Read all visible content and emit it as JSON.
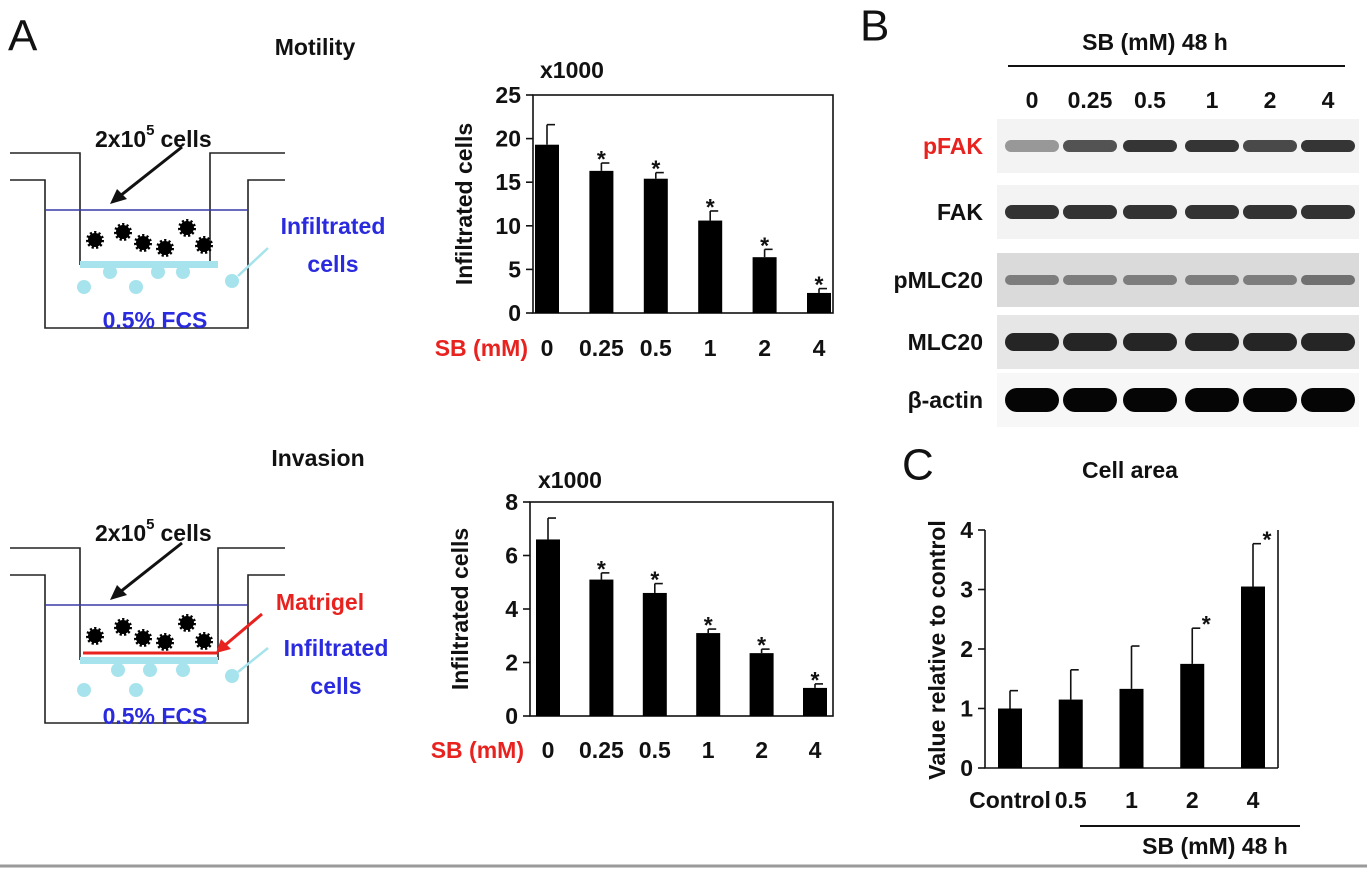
{
  "panels": {
    "a": "A",
    "b": "B",
    "c": "C"
  },
  "diagrams": [
    {
      "cells": "2x10",
      "exponent": "5",
      "cells_suffix": "cells",
      "infiltrated": [
        "Infiltrated",
        "cells"
      ],
      "medium": "0.5% FCS"
    },
    {
      "cells": "2x10",
      "exponent": "5",
      "cells_suffix": "cells",
      "infiltrated": [
        "Infiltrated",
        "cells"
      ],
      "medium": "0.5% FCS",
      "matrigel": "Matrigel"
    }
  ],
  "blot": {
    "title": "SB (mM) 48 h",
    "lanes": [
      "0",
      "0.25",
      "0.5",
      "1",
      "2",
      "4"
    ],
    "rows": [
      {
        "label": "pFAK",
        "color": "#e8221f"
      },
      {
        "label": "FAK",
        "color": "#111111"
      },
      {
        "label": "pMLC20",
        "color": "#111111"
      },
      {
        "label": "MLC20",
        "color": "#111111"
      },
      {
        "label": "β-actin",
        "color": "#111111"
      }
    ]
  },
  "chart_data": [
    {
      "type": "bar",
      "title": "Motility",
      "y_label": "Infiltrated cells",
      "y_multiplier": "x1000",
      "x_label": "SB (mM)",
      "x_label_color": "#e8221f",
      "categories": [
        "0",
        "0.25",
        "0.5",
        "1",
        "2",
        "4"
      ],
      "values": [
        19.3,
        16.3,
        15.4,
        10.6,
        6.4,
        2.3
      ],
      "errors": [
        2.3,
        0.9,
        0.7,
        1.1,
        0.9,
        0.5
      ],
      "significance": [
        null,
        "*",
        "*",
        "*",
        "*",
        "*"
      ],
      "color": "#000000",
      "ylim": [
        0,
        25
      ],
      "yticks": [
        0,
        5,
        10,
        15,
        20,
        25
      ]
    },
    {
      "type": "bar",
      "title": "Invasion",
      "y_label": "Infiltrated cells",
      "y_multiplier": "x1000",
      "x_label": "SB (mM)",
      "x_label_color": "#e8221f",
      "categories": [
        "0",
        "0.25",
        "0.5",
        "1",
        "2",
        "4"
      ],
      "values": [
        6.6,
        5.1,
        4.6,
        3.1,
        2.35,
        1.05
      ],
      "errors": [
        0.8,
        0.25,
        0.35,
        0.15,
        0.15,
        0.15
      ],
      "significance": [
        null,
        "*",
        "*",
        "*",
        "*",
        "*"
      ],
      "color": "#000000",
      "ylim": [
        0,
        8
      ],
      "yticks": [
        0,
        2,
        4,
        6,
        8
      ]
    },
    {
      "type": "bar",
      "title": "Cell area",
      "y_label": "Value relative to control",
      "x_label": "SB (mM) 48 h",
      "x_label_color": "#111111",
      "categories": [
        "Control",
        "0.5",
        "1",
        "2",
        "4"
      ],
      "values": [
        1.0,
        1.15,
        1.33,
        1.75,
        3.05
      ],
      "errors": [
        0.3,
        0.5,
        0.72,
        0.6,
        0.72
      ],
      "significance": [
        null,
        null,
        null,
        "*",
        "*"
      ],
      "color": "#000000",
      "ylim": [
        0,
        4
      ],
      "yticks": [
        0,
        1,
        2,
        3,
        4
      ]
    }
  ]
}
